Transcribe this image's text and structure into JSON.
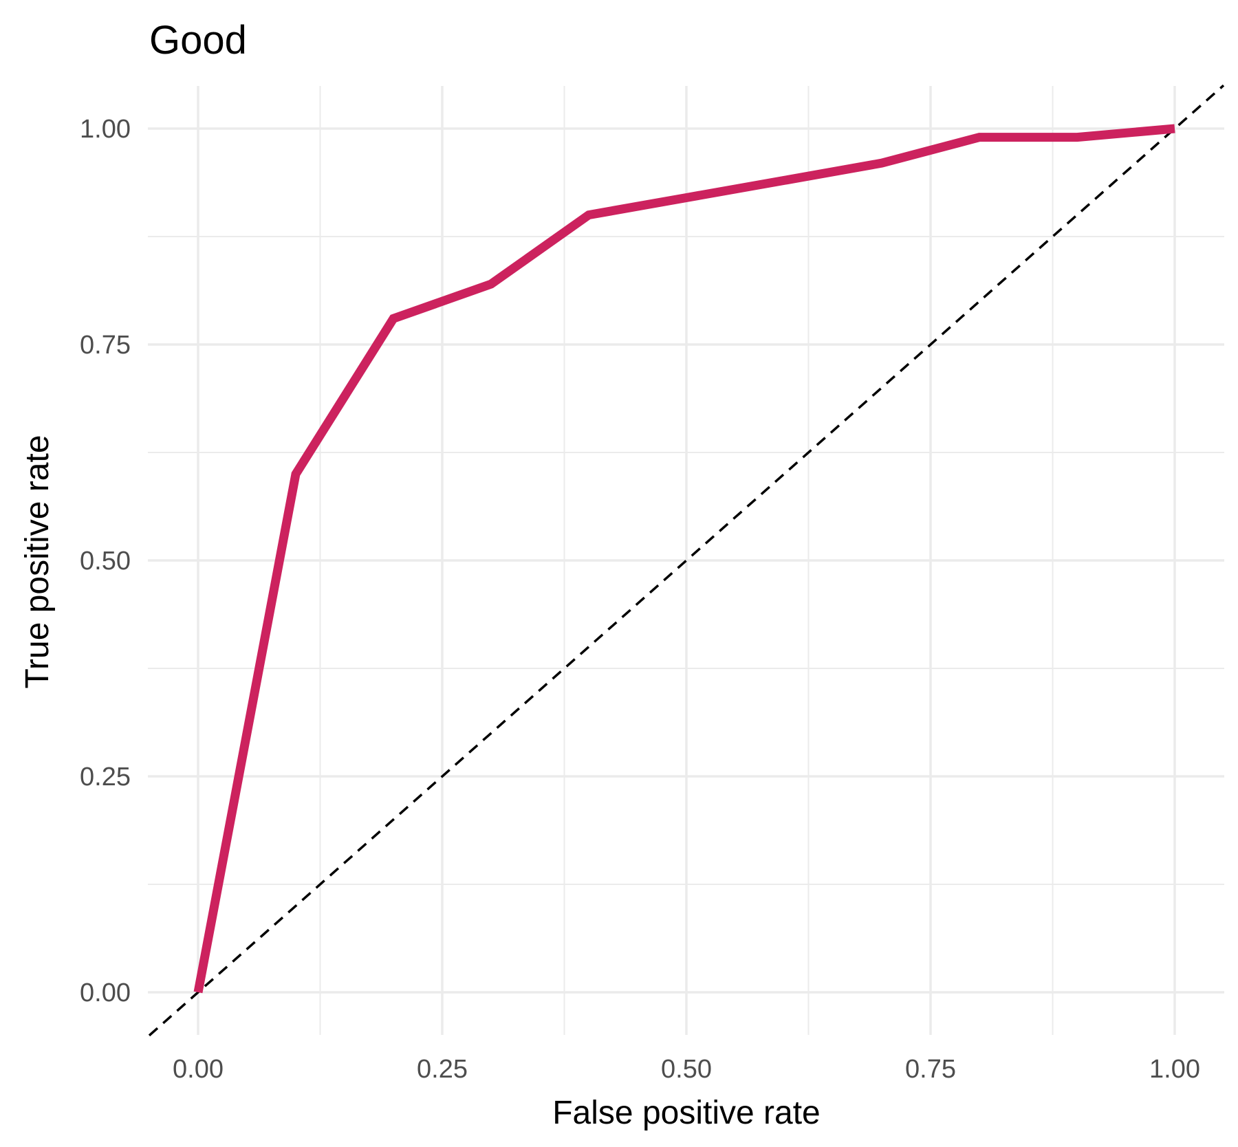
{
  "chart_data": {
    "type": "line",
    "title": "Good",
    "xlabel": "False positive rate",
    "ylabel": "True positive rate",
    "xlim": [
      0,
      1
    ],
    "ylim": [
      0,
      1
    ],
    "x_ticks": [
      "0.00",
      "0.25",
      "0.50",
      "0.75",
      "1.00"
    ],
    "y_ticks": [
      "0.00",
      "0.25",
      "0.50",
      "0.75",
      "1.00"
    ],
    "grid": true,
    "series": [
      {
        "color": "#cc225e",
        "x": [
          0.0,
          0.1,
          0.2,
          0.3,
          0.4,
          0.5,
          0.6,
          0.7,
          0.8,
          0.9,
          1.0
        ],
        "y": [
          0.0,
          0.6,
          0.78,
          0.82,
          0.9,
          0.92,
          0.94,
          0.96,
          0.99,
          0.99,
          1.0
        ]
      }
    ],
    "reference_line": {
      "style": "dashed",
      "color": "#000000",
      "x": [
        -0.05,
        1.05
      ],
      "y": [
        -0.05,
        1.05
      ]
    }
  }
}
